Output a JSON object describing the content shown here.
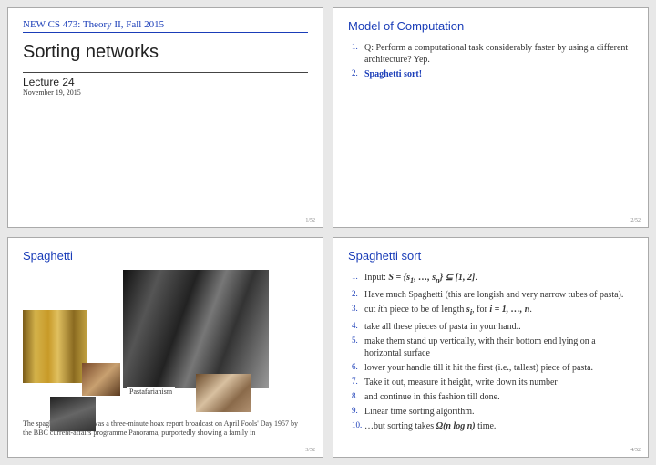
{
  "slide1": {
    "course": "NEW CS 473: Theory II, Fall 2015",
    "title": "Sorting networks",
    "lecture": "Lecture 24",
    "date": "November 19, 2015",
    "pagenum": "1/52"
  },
  "slide2": {
    "title": "Model of Computation",
    "items": [
      "Q: Perform a computational task considerably faster by using a different architecture? Yep.",
      "Spaghetti sort!"
    ],
    "pagenum": "2/52"
  },
  "slide3": {
    "title": "Spaghetti",
    "caption": "Pastafarianism",
    "footnote": "The spaghetti tree hoax was a three-minute hoax report broadcast on April Fools' Day 1957 by the BBC current-affairs programme Panorama, purportedly showing a family in",
    "pagenum": "3/52"
  },
  "slide4": {
    "title": "Spaghetti sort",
    "items": [
      {
        "html": "Input: <span class='math'>S = {s<sub>1</sub>, …, s<sub>n</sub>} ⊆ [1, 2]</span>."
      },
      {
        "html": "Have much Spaghetti (this are longish and very narrow tubes of pasta)."
      },
      {
        "html": "cut <i>i</i>th piece to be of length <span class='math'>s<sub>i</sub></span>, for <span class='math'>i = 1, …, n</span>."
      },
      {
        "html": "take all these pieces of pasta in your hand.."
      },
      {
        "html": "make them stand up vertically, with their bottom end lying on a horizontal surface"
      },
      {
        "html": "lower your handle till it hit the first (i.e., tallest) piece of pasta."
      },
      {
        "html": "Take it out, measure it height, write down its number"
      },
      {
        "html": "and continue in this fashion till done."
      },
      {
        "html": "Linear time sorting algorithm."
      },
      {
        "html": "…but sorting takes <span class='math'>Ω(n log n)</span> time."
      }
    ],
    "pagenum": "4/52"
  },
  "colors": {
    "link_blue": "#1a3db8",
    "background": "#e8e8e8",
    "slide_bg": "#ffffff",
    "border": "#aaaaaa"
  },
  "fonts": {
    "serif": "Georgia, Times New Roman, serif",
    "sans": "Helvetica, Arial, sans-serif",
    "title_size_pt": 20,
    "section_size_pt": 13,
    "body_size_pt": 10
  }
}
